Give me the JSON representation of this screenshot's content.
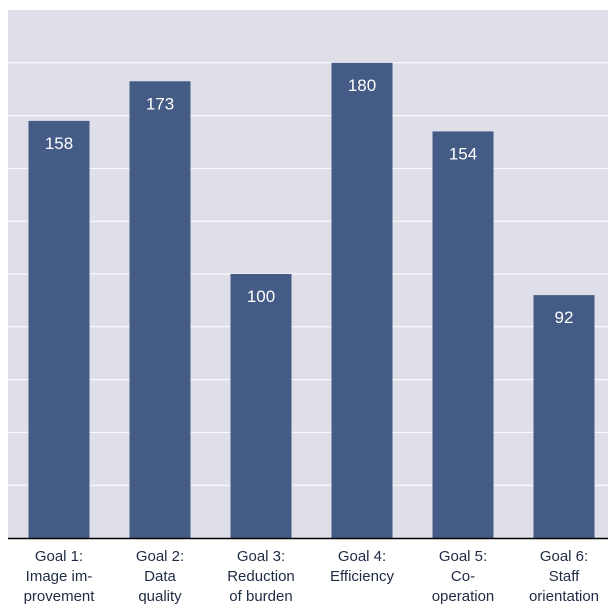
{
  "chart_data": {
    "type": "bar",
    "title": "",
    "xlabel": "",
    "ylabel": "",
    "categories": [
      [
        "Goal 1:",
        "Image im-",
        "provement"
      ],
      [
        "Goal 2:",
        "Data",
        "quality"
      ],
      [
        "Goal 3:",
        "Reduction",
        "of burden"
      ],
      [
        "Goal 4:",
        "Efficiency"
      ],
      [
        "Goal 5:",
        "Co-",
        "operation"
      ],
      [
        "Goal 6:",
        "Staff",
        "orientation"
      ]
    ],
    "values": [
      158,
      173,
      100,
      180,
      154,
      92
    ],
    "value_labels": [
      "158",
      "173",
      "100",
      "180",
      "154",
      "92"
    ],
    "ylim": [
      0,
      200
    ],
    "grid_step": 20,
    "grid": true,
    "legend": "none",
    "colors": {
      "plot_background": "#dfdfe9",
      "bar": "#445b86",
      "gridline": "#ffffff",
      "value_label": "#ffffff",
      "axis": "#000000",
      "category_label": "#1f2a44"
    }
  }
}
